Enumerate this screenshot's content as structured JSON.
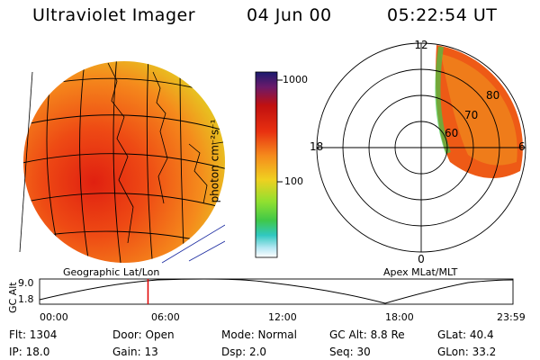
{
  "header": {
    "title": "Ultraviolet Imager",
    "date": "04 Jun 00",
    "time": "05:22:54 UT"
  },
  "geographic_panel": {
    "caption": "Geographic Lat/Lon"
  },
  "colorbar": {
    "label": "photon cm⁻²s⁻¹",
    "ticks": [
      "1000",
      "100"
    ],
    "colors": [
      "#1a1a6e",
      "#3c1a7a",
      "#8a1a5a",
      "#c01010",
      "#e03010",
      "#f06018",
      "#f89020",
      "#f8b828",
      "#e8e020",
      "#a8e028",
      "#40d040",
      "#30c8b0",
      "#80d8f0",
      "#c8f0f8",
      "#ffffff"
    ]
  },
  "apex_panel": {
    "caption": "Apex MLat/MLT",
    "mlt_labels": [
      "12",
      "18",
      "6",
      "0"
    ],
    "mlat_labels": [
      "80",
      "70",
      "60",
      "80"
    ]
  },
  "timeline": {
    "ylabel": "GC Alt",
    "ymax": "9.0",
    "ymin": "1.8",
    "ticks": [
      "00:00",
      "06:00",
      "12:00",
      "18:00",
      "23:59"
    ],
    "current_fraction": 0.229,
    "marker_color": "#e00000"
  },
  "footer": {
    "flt": "Flt:  1304",
    "ip": "IP:  18.0",
    "door": "Door:  Open",
    "gain": "Gain:  13",
    "mode": "Mode:  Normal",
    "dsp": "Dsp:     2.0",
    "gcalt": "GC Alt:  8.8 Re",
    "seq": "Seq:  30",
    "glat": "GLat:    40.4",
    "glon": "GLon:    33.2"
  }
}
